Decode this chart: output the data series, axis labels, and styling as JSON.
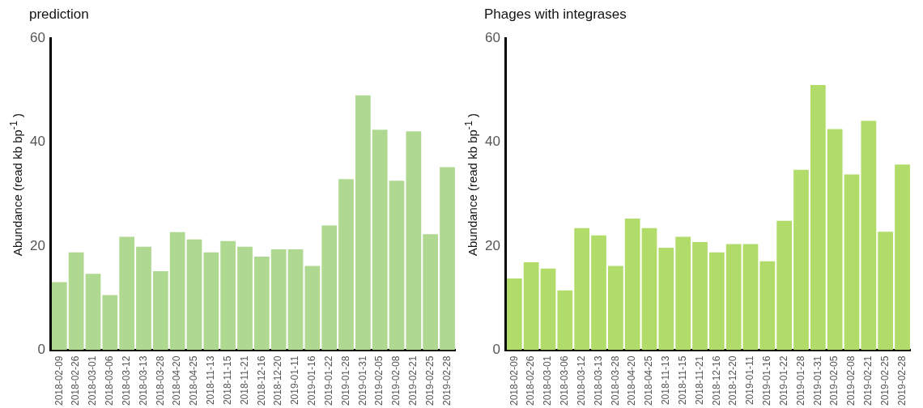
{
  "chart_data": [
    {
      "type": "bar",
      "title": "prediction",
      "ylabel": "Abundance (read kb bp$^{-1}$ )",
      "categories": [
        "2018-02-09",
        "2018-02-26",
        "2018-03-01",
        "2018-03-06",
        "2018-03-12",
        "2018-03-13",
        "2018-03-28",
        "2018-04-20",
        "2018-04-25",
        "2018-11-13",
        "2018-11-15",
        "2018-11-21",
        "2018-12-16",
        "2018-12-20",
        "2019-01-11",
        "2019-01-16",
        "2019-01-22",
        "2019-01-28",
        "2019-01-31",
        "2019-02-05",
        "2019-02-08",
        "2019-02-21",
        "2019-02-25",
        "2019-02-28"
      ],
      "values": [
        13.1,
        18.8,
        14.7,
        10.6,
        21.8,
        19.9,
        15.2,
        22.7,
        21.3,
        18.8,
        21.0,
        19.9,
        18.0,
        19.4,
        19.4,
        16.2,
        24.0,
        32.9,
        49.0,
        42.4,
        32.6,
        42.1,
        22.3,
        35.2
      ],
      "color": "#afd891",
      "ylim": [
        0,
        60
      ],
      "yticks": [
        0,
        20,
        40,
        60
      ],
      "grid": false,
      "legend": false
    },
    {
      "type": "bar",
      "title": "Phages with integrases",
      "ylabel": "Abundance (read kb bp$^{-1}$ )",
      "categories": [
        "2018-02-09",
        "2018-02-26",
        "2018-03-01",
        "2018-03-06",
        "2018-03-12",
        "2018-03-13",
        "2018-03-28",
        "2018-04-20",
        "2018-04-25",
        "2018-11-13",
        "2018-11-15",
        "2018-11-21",
        "2018-12-16",
        "2018-12-20",
        "2019-01-11",
        "2019-01-16",
        "2019-01-22",
        "2019-01-28",
        "2019-01-31",
        "2019-02-05",
        "2019-02-08",
        "2019-02-21",
        "2019-02-25",
        "2019-02-28"
      ],
      "values": [
        13.8,
        16.9,
        15.7,
        11.5,
        23.5,
        22.1,
        16.2,
        25.3,
        23.5,
        19.7,
        21.8,
        20.8,
        18.8,
        20.4,
        20.4,
        17.1,
        24.9,
        34.7,
        51.0,
        42.5,
        33.8,
        44.1,
        22.8,
        35.7
      ],
      "color": "#b2dc6a",
      "ylim": [
        0,
        60
      ],
      "yticks": [
        0,
        20,
        40,
        60
      ],
      "grid": false,
      "legend": false
    }
  ]
}
